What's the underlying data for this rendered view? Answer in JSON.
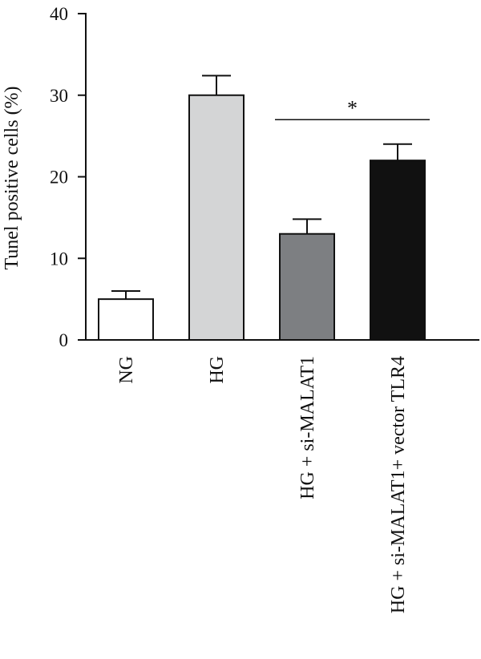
{
  "chart_data": {
    "type": "bar",
    "title": "",
    "xlabel": "",
    "ylabel": "Tunel positive cells (%)",
    "ylim": [
      0,
      40
    ],
    "yticks": [
      0,
      10,
      20,
      30,
      40
    ],
    "grid": false,
    "categories": [
      "NG",
      "HG",
      "HG + si-MALAT1",
      "HG + si-MALAT1+ vector TLR4"
    ],
    "values": [
      5,
      30,
      13,
      22
    ],
    "error": [
      1,
      2.4,
      1.8,
      2
    ],
    "bar_colors": [
      "#ffffff",
      "#d4d5d6",
      "#7d7f82",
      "#111111"
    ],
    "significance": [
      {
        "from": 2,
        "to": 3,
        "label": "*",
        "y": 27
      }
    ]
  }
}
